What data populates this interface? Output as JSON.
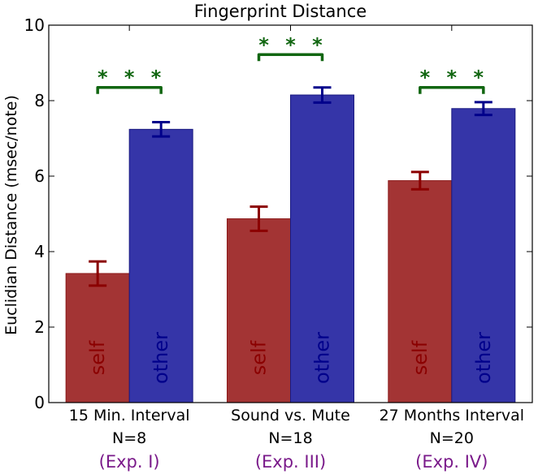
{
  "chart_data": {
    "type": "bar",
    "title": "Fingerprint Distance",
    "xlabel": "",
    "ylabel": "Euclidian Distance (msec/note)",
    "ylim": [
      0,
      10
    ],
    "yticks": [
      "0",
      "2",
      "4",
      "6",
      "8",
      "10"
    ],
    "grid": false,
    "categories": [
      {
        "name": "15 Min. Interval",
        "n": "N=8",
        "exp": "(Exp. I)"
      },
      {
        "name": "Sound vs. Mute",
        "n": "N=18",
        "exp": "(Exp. III)"
      },
      {
        "name": "27 Months Interval",
        "n": "N=20",
        "exp": "(Exp. IV)"
      }
    ],
    "series": [
      {
        "name": "self",
        "color": "#a33434",
        "edge": "#8b1a1a",
        "errColor": "#8b0000",
        "values": [
          3.42,
          4.87,
          5.88
        ],
        "errors": [
          0.32,
          0.32,
          0.23
        ]
      },
      {
        "name": "other",
        "color": "#3535a8",
        "edge": "#1a1a80",
        "errColor": "#00008b",
        "values": [
          7.24,
          8.15,
          7.79
        ],
        "errors": [
          0.19,
          0.2,
          0.17
        ]
      }
    ],
    "significance": [
      {
        "label": "* * *",
        "level": 8.35
      },
      {
        "label": "* * *",
        "level": 9.22
      },
      {
        "label": "* * *",
        "level": 8.35
      }
    ],
    "significance_color": "#116611",
    "exp_color": "#7a1a8a"
  }
}
